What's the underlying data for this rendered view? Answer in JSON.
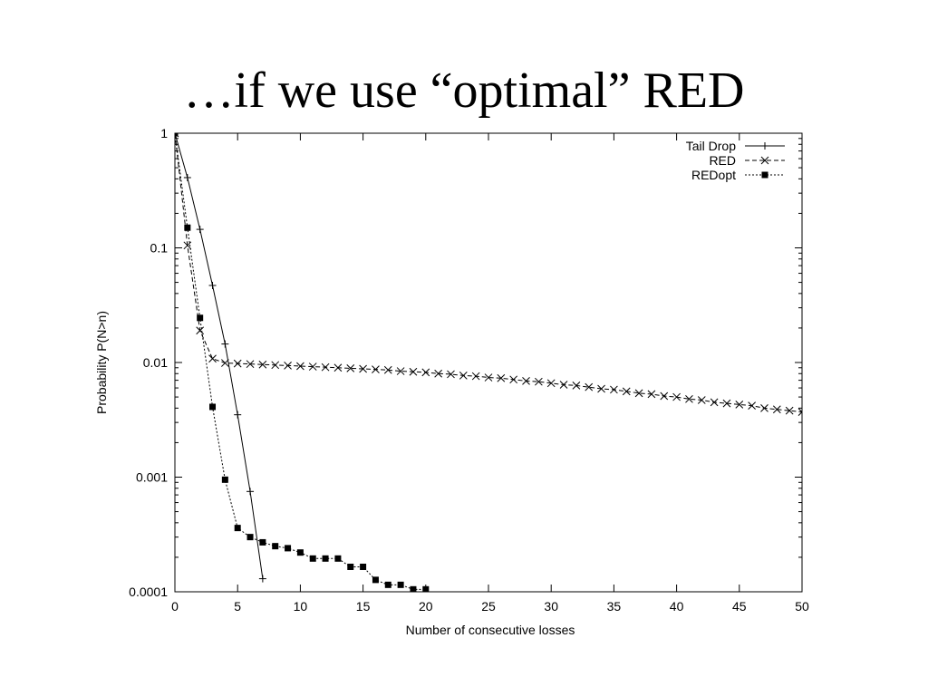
{
  "slide": {
    "title": "…if we use “optimal” RED"
  },
  "chart_data": {
    "type": "line",
    "title": "",
    "xlabel": "Number of consecutive losses",
    "ylabel": "Probability P(N>n)",
    "yscale": "log",
    "xlim": [
      0,
      50
    ],
    "ylim": [
      0.0001,
      1
    ],
    "x_ticks": [
      0,
      5,
      10,
      15,
      20,
      25,
      30,
      35,
      40,
      45,
      50
    ],
    "y_ticks": [
      {
        "value": 1,
        "label": "1"
      },
      {
        "value": 0.1,
        "label": "0.1"
      },
      {
        "value": 0.01,
        "label": "0.01"
      },
      {
        "value": 0.001,
        "label": "0.001"
      },
      {
        "value": 0.0001,
        "label": "0.0001"
      }
    ],
    "grid": false,
    "legend_position": "top-right",
    "series": [
      {
        "name": "Tail Drop",
        "marker": "plus",
        "line_style": "solid",
        "x": [
          0,
          1,
          2,
          3,
          4,
          5,
          6,
          7
        ],
        "y": [
          1,
          0.41,
          0.145,
          0.047,
          0.0145,
          0.0035,
          0.00075,
          0.00013
        ]
      },
      {
        "name": "RED",
        "marker": "cross",
        "line_style": "dashed",
        "x": [
          0,
          1,
          2,
          3,
          4,
          5,
          6,
          7,
          8,
          9,
          10,
          11,
          12,
          13,
          14,
          15,
          16,
          17,
          18,
          19,
          20,
          21,
          22,
          23,
          24,
          25,
          26,
          27,
          28,
          29,
          30,
          31,
          32,
          33,
          34,
          35,
          36,
          37,
          38,
          39,
          40,
          41,
          42,
          43,
          44,
          45,
          46,
          47,
          48,
          49,
          50
        ],
        "y": [
          1,
          0.105,
          0.019,
          0.0108,
          0.0099,
          0.0098,
          0.0097,
          0.0096,
          0.0095,
          0.0094,
          0.0093,
          0.0092,
          0.0091,
          0.009,
          0.0089,
          0.0088,
          0.0087,
          0.0086,
          0.0084,
          0.0083,
          0.0082,
          0.008,
          0.0079,
          0.0077,
          0.0076,
          0.0074,
          0.0073,
          0.0071,
          0.0069,
          0.0068,
          0.0066,
          0.0064,
          0.0063,
          0.0061,
          0.0059,
          0.0058,
          0.0056,
          0.0054,
          0.0053,
          0.0051,
          0.005,
          0.0048,
          0.0047,
          0.0045,
          0.0044,
          0.0043,
          0.0042,
          0.004,
          0.0039,
          0.0038,
          0.0037
        ]
      },
      {
        "name": "REDopt",
        "marker": "filled-square",
        "line_style": "dotted",
        "x": [
          0,
          1,
          2,
          3,
          4,
          5,
          6,
          7,
          8,
          9,
          10,
          11,
          12,
          13,
          14,
          15,
          16,
          17,
          18,
          19,
          20
        ],
        "y": [
          1,
          0.15,
          0.0245,
          0.0041,
          0.00095,
          0.00036,
          0.0003,
          0.00027,
          0.00025,
          0.00024,
          0.00022,
          0.000195,
          0.000195,
          0.000195,
          0.000165,
          0.000165,
          0.000127,
          0.000115,
          0.000115,
          0.000105,
          0.000105
        ]
      }
    ]
  }
}
